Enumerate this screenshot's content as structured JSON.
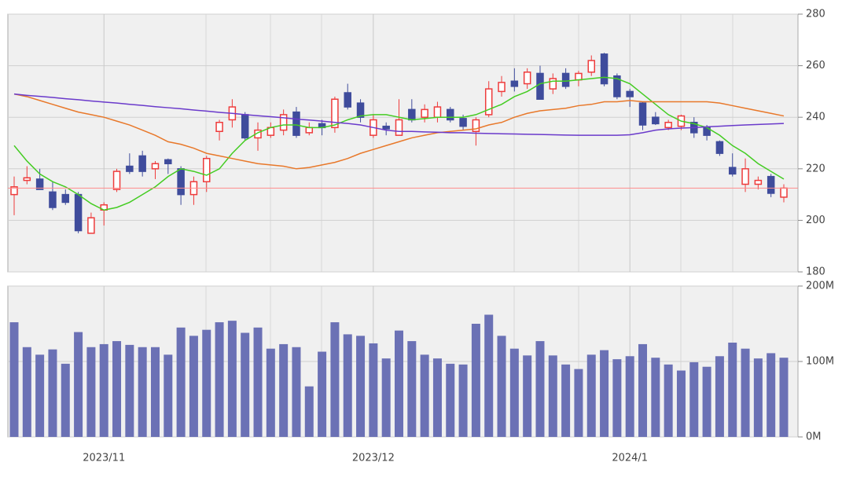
{
  "chart_data": [
    {
      "type": "candlestick",
      "open": [
        210,
        215.5,
        216,
        211,
        210,
        210,
        195,
        204,
        212,
        221,
        225,
        220,
        223.5,
        220,
        210,
        215,
        234.5,
        239,
        241,
        232,
        233,
        235,
        242,
        234,
        237.5,
        236,
        249.5,
        245.5,
        233,
        236.5,
        233,
        243,
        240,
        240,
        243,
        239.5,
        234.5,
        241,
        250,
        254,
        253,
        257,
        251,
        257,
        254.5,
        257.5,
        264.5,
        256,
        250,
        245.5,
        240,
        236,
        236.5,
        238,
        236,
        230.5,
        220.5,
        214,
        214,
        217,
        209
      ],
      "high": [
        217,
        221,
        220,
        215,
        212,
        211,
        203,
        207,
        220,
        226,
        227,
        223,
        224,
        221,
        217,
        225,
        239,
        247,
        242,
        238,
        238,
        243,
        244,
        238,
        239,
        248,
        253,
        247,
        241,
        238,
        247,
        247,
        245,
        246,
        244,
        241,
        240,
        254,
        256,
        259,
        259,
        260,
        257,
        259,
        258,
        264,
        265,
        257,
        251,
        246,
        242,
        239,
        241,
        240,
        237,
        231,
        226,
        224,
        217,
        218,
        214
      ],
      "low": [
        202,
        214,
        212,
        204,
        206,
        195,
        195,
        198,
        211,
        218,
        217,
        216,
        218,
        206,
        206,
        211,
        231,
        236,
        231,
        227,
        232,
        233,
        232,
        233,
        233,
        234,
        243,
        238,
        232,
        233,
        233,
        238,
        238,
        238,
        238,
        235,
        229,
        240,
        248,
        250,
        251,
        247,
        249,
        251,
        252,
        256,
        252,
        247,
        244,
        235,
        237,
        235,
        235,
        232,
        231,
        225,
        217,
        211,
        212,
        209,
        207
      ],
      "close": [
        213,
        216.5,
        212,
        205,
        207,
        196,
        201,
        206,
        219,
        219,
        219,
        222,
        222,
        210,
        215,
        224,
        238,
        244,
        232,
        235,
        236,
        241,
        233,
        236,
        236,
        247,
        244,
        240,
        239,
        235.5,
        239,
        239,
        243,
        244,
        239,
        236.5,
        239,
        251,
        253.5,
        252,
        257.5,
        247,
        255,
        252,
        257,
        262,
        253,
        248,
        248,
        237,
        237.5,
        238,
        240.5,
        234,
        233,
        226,
        218,
        220,
        215.5,
        210.5,
        212.5
      ],
      "up_color": "#ee3b3b",
      "down_color": "#3f4c9c",
      "price_line_color": "#ff8c8c",
      "series": [
        {
          "color": "#44cc22",
          "values": [
            229,
            223,
            218,
            215,
            213,
            210,
            206.5,
            204,
            205,
            207,
            210,
            213,
            217,
            220,
            219,
            217.5,
            220,
            226,
            231,
            234,
            236,
            237,
            237,
            236,
            236,
            237,
            239,
            240.5,
            241,
            241,
            240,
            239,
            239.5,
            240,
            240,
            240,
            241,
            243,
            245,
            248,
            250,
            253,
            254,
            254,
            254.5,
            255,
            255.5,
            255,
            253,
            249,
            245,
            241,
            238.5,
            237.5,
            236,
            233,
            229,
            226,
            222,
            219,
            216
          ]
        },
        {
          "color": "#e8782a",
          "values": [
            249,
            248,
            246.5,
            245,
            243.5,
            242,
            241,
            240,
            238.5,
            237,
            235,
            233,
            230.5,
            229.5,
            228,
            226,
            225,
            224,
            223,
            222,
            221.5,
            221,
            220,
            220.5,
            221.5,
            222.5,
            224,
            226,
            227.5,
            229,
            230.5,
            232,
            233,
            234,
            234.5,
            235,
            235.5,
            237,
            238,
            240,
            241.5,
            242.5,
            243,
            243.5,
            244.5,
            245,
            246,
            246,
            246.5,
            246,
            246,
            246,
            246,
            246,
            246,
            245.5,
            244.5,
            243.5,
            242.5,
            241.5,
            240.5
          ]
        },
        {
          "color": "#6a3acb",
          "values": [
            249,
            248.5,
            248.1,
            247.7,
            247.2,
            246.8,
            246.3,
            245.9,
            245.5,
            245,
            244.6,
            244.1,
            243.7,
            243.3,
            242.8,
            242.4,
            241.9,
            241.5,
            241,
            240.6,
            240.2,
            239.8,
            239.3,
            238.9,
            238.5,
            238,
            237.6,
            237,
            236,
            235,
            234.5,
            234.5,
            234.3,
            234.2,
            234,
            234,
            233.8,
            233.7,
            233.6,
            233.5,
            233.4,
            233.3,
            233.2,
            233.1,
            233,
            233,
            233,
            233,
            233.2,
            234,
            235,
            235.5,
            235.8,
            236,
            236.3,
            236.5,
            236.8,
            237,
            237.2,
            237.4,
            237.6
          ]
        }
      ],
      "ylim": [
        180,
        280
      ],
      "yticks": [
        180,
        200,
        220,
        240,
        260,
        280
      ],
      "grid": true
    },
    {
      "type": "bar",
      "categories": [
        null,
        null,
        null,
        null,
        null,
        null,
        null,
        "2023/11",
        null,
        null,
        null,
        null,
        null,
        null,
        null,
        null,
        null,
        null,
        null,
        null,
        null,
        null,
        null,
        null,
        null,
        null,
        null,
        null,
        "2023/12",
        null,
        null,
        null,
        null,
        null,
        null,
        null,
        null,
        null,
        null,
        null,
        null,
        null,
        null,
        null,
        null,
        null,
        null,
        null,
        "2024/1",
        null,
        null,
        null,
        null,
        null,
        null,
        null,
        null,
        null,
        null,
        null,
        null
      ],
      "values": [
        152,
        119,
        109,
        116,
        97,
        139,
        119,
        123,
        127,
        122,
        119,
        119,
        109,
        145,
        134,
        142,
        152,
        154,
        138,
        145,
        117,
        123,
        119,
        67,
        113,
        152,
        136,
        134,
        124,
        104,
        141,
        127,
        109,
        104,
        97,
        96,
        150,
        162,
        134,
        117,
        108,
        127,
        108,
        96,
        90,
        109,
        115,
        103,
        107,
        123,
        105,
        96,
        88,
        99,
        93,
        107,
        125,
        117,
        104,
        111,
        105
      ],
      "color": "#6b71b5",
      "ylim": [
        0,
        200
      ],
      "yticks": [
        {
          "value": 0,
          "label": "0M"
        },
        {
          "value": 100,
          "label": "100M"
        },
        {
          "value": 200,
          "label": "200M"
        }
      ],
      "grid": true
    }
  ]
}
